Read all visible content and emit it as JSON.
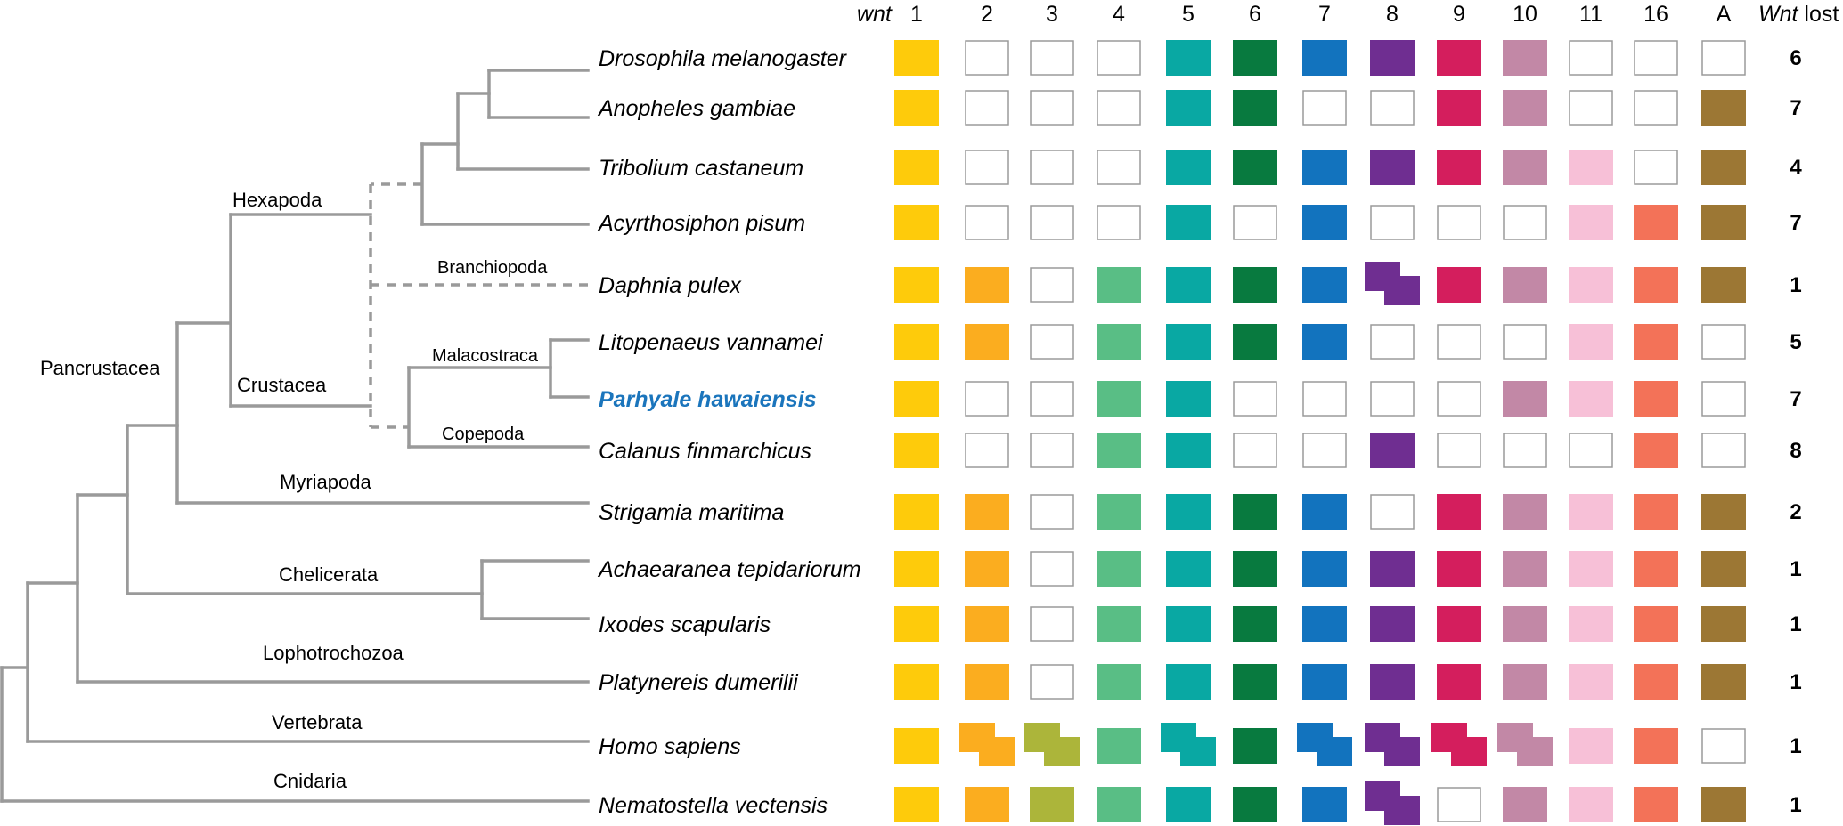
{
  "header": {
    "wnt_label": "wnt",
    "lost_label_italic": "Wnt",
    "lost_label_rest": " lost"
  },
  "columns": [
    "1",
    "2",
    "3",
    "4",
    "5",
    "6",
    "7",
    "8",
    "9",
    "10",
    "11",
    "16",
    "A"
  ],
  "colors": [
    "#fecb0b",
    "#fbad1f",
    "#acb53a",
    "#59be85",
    "#09a8a3",
    "#087a3f",
    "#1273be",
    "#6f2e91",
    "#d41e5d",
    "#c288a6",
    "#f7c0d7",
    "#f37258",
    "#9c7734"
  ],
  "clades": {
    "hexapoda": "Hexapoda",
    "branchiopoda": "Branchiopoda",
    "malacostraca": "Malacostraca",
    "crustacea": "Crustacea",
    "pancrustacea": "Pancrustacea",
    "copepoda": "Copepoda",
    "myriapoda": "Myriapoda",
    "chelicerata": "Chelicerata",
    "lophotrochozoa": "Lophotrochozoa",
    "vertebrata": "Vertebrata",
    "cnidaria": "Cnidaria"
  },
  "species": [
    {
      "name": "Drosophila melanogaster",
      "cells": [
        1,
        0,
        0,
        0,
        1,
        1,
        1,
        1,
        1,
        1,
        0,
        0,
        0
      ],
      "lost": "6"
    },
    {
      "name": "Anopheles gambiae",
      "cells": [
        1,
        0,
        0,
        0,
        1,
        1,
        0,
        0,
        1,
        1,
        0,
        0,
        1
      ],
      "lost": "7"
    },
    {
      "name": "Tribolium castaneum",
      "cells": [
        1,
        0,
        0,
        0,
        1,
        1,
        1,
        1,
        1,
        1,
        1,
        0,
        1
      ],
      "lost": "4"
    },
    {
      "name": "Acyrthosiphon pisum",
      "cells": [
        1,
        0,
        0,
        0,
        1,
        0,
        1,
        0,
        0,
        0,
        1,
        1,
        1
      ],
      "lost": "7"
    },
    {
      "name": "Daphnia pulex",
      "cells": [
        1,
        1,
        0,
        1,
        1,
        1,
        1,
        2,
        1,
        1,
        1,
        1,
        1
      ],
      "lost": "1"
    },
    {
      "name": "Litopenaeus vannamei",
      "cells": [
        1,
        1,
        0,
        1,
        1,
        1,
        1,
        0,
        0,
        0,
        1,
        1,
        0
      ],
      "lost": "5"
    },
    {
      "name": "Parhyale hawaiensis",
      "cells": [
        1,
        0,
        0,
        1,
        1,
        0,
        0,
        0,
        0,
        1,
        1,
        1,
        0
      ],
      "lost": "7",
      "highlight": true
    },
    {
      "name": "Calanus finmarchicus",
      "cells": [
        1,
        0,
        0,
        1,
        1,
        0,
        0,
        1,
        0,
        0,
        0,
        1,
        0
      ],
      "lost": "8"
    },
    {
      "name": "Strigamia maritima",
      "cells": [
        1,
        1,
        0,
        1,
        1,
        1,
        1,
        0,
        1,
        1,
        1,
        1,
        1
      ],
      "lost": "2"
    },
    {
      "name": "Achaearanea tepidariorum",
      "cells": [
        1,
        1,
        0,
        1,
        1,
        1,
        1,
        1,
        1,
        1,
        1,
        1,
        1
      ],
      "lost": "1"
    },
    {
      "name": "Ixodes scapularis",
      "cells": [
        1,
        1,
        0,
        1,
        1,
        1,
        1,
        1,
        1,
        1,
        1,
        1,
        1
      ],
      "lost": "1"
    },
    {
      "name": "Platynereis dumerilii",
      "cells": [
        1,
        1,
        0,
        1,
        1,
        1,
        1,
        1,
        1,
        1,
        1,
        1,
        1
      ],
      "lost": "1"
    },
    {
      "name": "Homo sapiens",
      "cells": [
        1,
        2,
        2,
        1,
        2,
        1,
        2,
        2,
        2,
        2,
        1,
        1,
        0
      ],
      "lost": "1"
    },
    {
      "name": "Nematostella vectensis",
      "cells": [
        1,
        1,
        1,
        1,
        1,
        1,
        1,
        2,
        0,
        1,
        1,
        1,
        1
      ],
      "lost": "1"
    }
  ]
}
